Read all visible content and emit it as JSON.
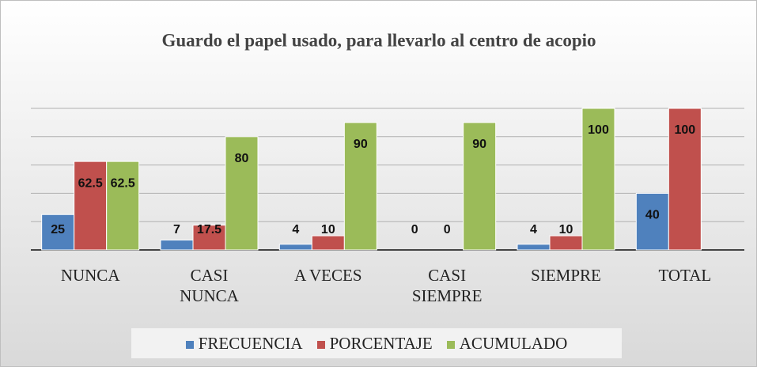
{
  "chart_data": {
    "type": "bar",
    "title": "Guardo el papel usado, para llevarlo  al centro de acopio",
    "categories": [
      "NUNCA",
      "CASI NUNCA",
      "A VECES",
      "CASI SIEMPRE",
      "SIEMPRE",
      "TOTAL"
    ],
    "series": [
      {
        "name": "FRECUENCIA",
        "color": "#4f81bd",
        "values": [
          25,
          7,
          4,
          0,
          4,
          40
        ]
      },
      {
        "name": "PORCENTAJE",
        "color": "#c0504d",
        "values": [
          62.5,
          17.5,
          10,
          0,
          10,
          100
        ]
      },
      {
        "name": "ACUMULADO",
        "color": "#9bbb59",
        "values": [
          62.5,
          80,
          90,
          90,
          100,
          null
        ]
      }
    ],
    "ylim": [
      0,
      100
    ],
    "yticks": [
      0,
      20,
      40,
      60,
      80,
      100
    ],
    "grid": true,
    "legend": "bottom"
  }
}
